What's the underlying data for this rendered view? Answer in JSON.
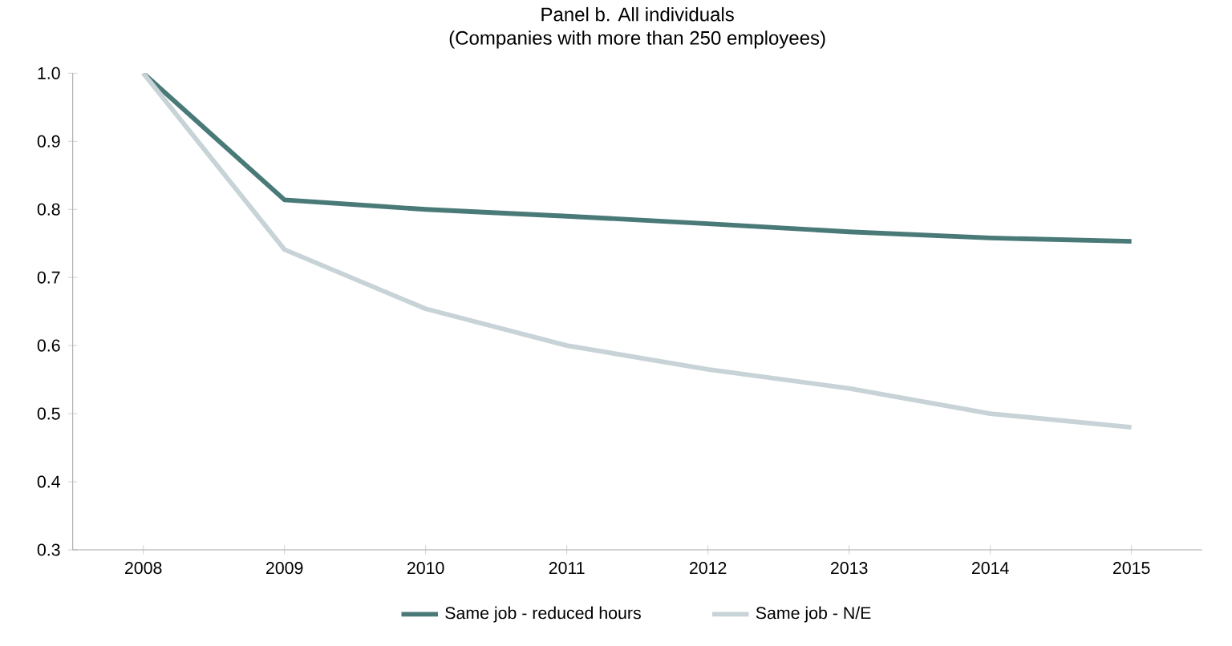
{
  "chart_data": {
    "type": "line",
    "title": "Panel b. All individuals",
    "subtitle": "(Companies with more than 250 employees)",
    "categories": [
      "2008",
      "2009",
      "2010",
      "2011",
      "2012",
      "2013",
      "2014",
      "2015"
    ],
    "series": [
      {
        "name": "Same job - reduced hours",
        "color": "#4a7a78",
        "values": [
          1.0,
          0.814,
          0.8,
          0.79,
          0.779,
          0.767,
          0.758,
          0.753
        ]
      },
      {
        "name": "Same job - N/E",
        "color": "#c8d3d8",
        "values": [
          1.0,
          0.741,
          0.654,
          0.6,
          0.565,
          0.537,
          0.5,
          0.48
        ]
      }
    ],
    "ylim": [
      0.3,
      1.0
    ],
    "yticks": [
      0.3,
      0.4,
      0.5,
      0.6,
      0.7,
      0.8,
      0.9,
      {
        "value": 1.0,
        "label": "1.0"
      }
    ],
    "grid": false,
    "legend": "bottom"
  }
}
